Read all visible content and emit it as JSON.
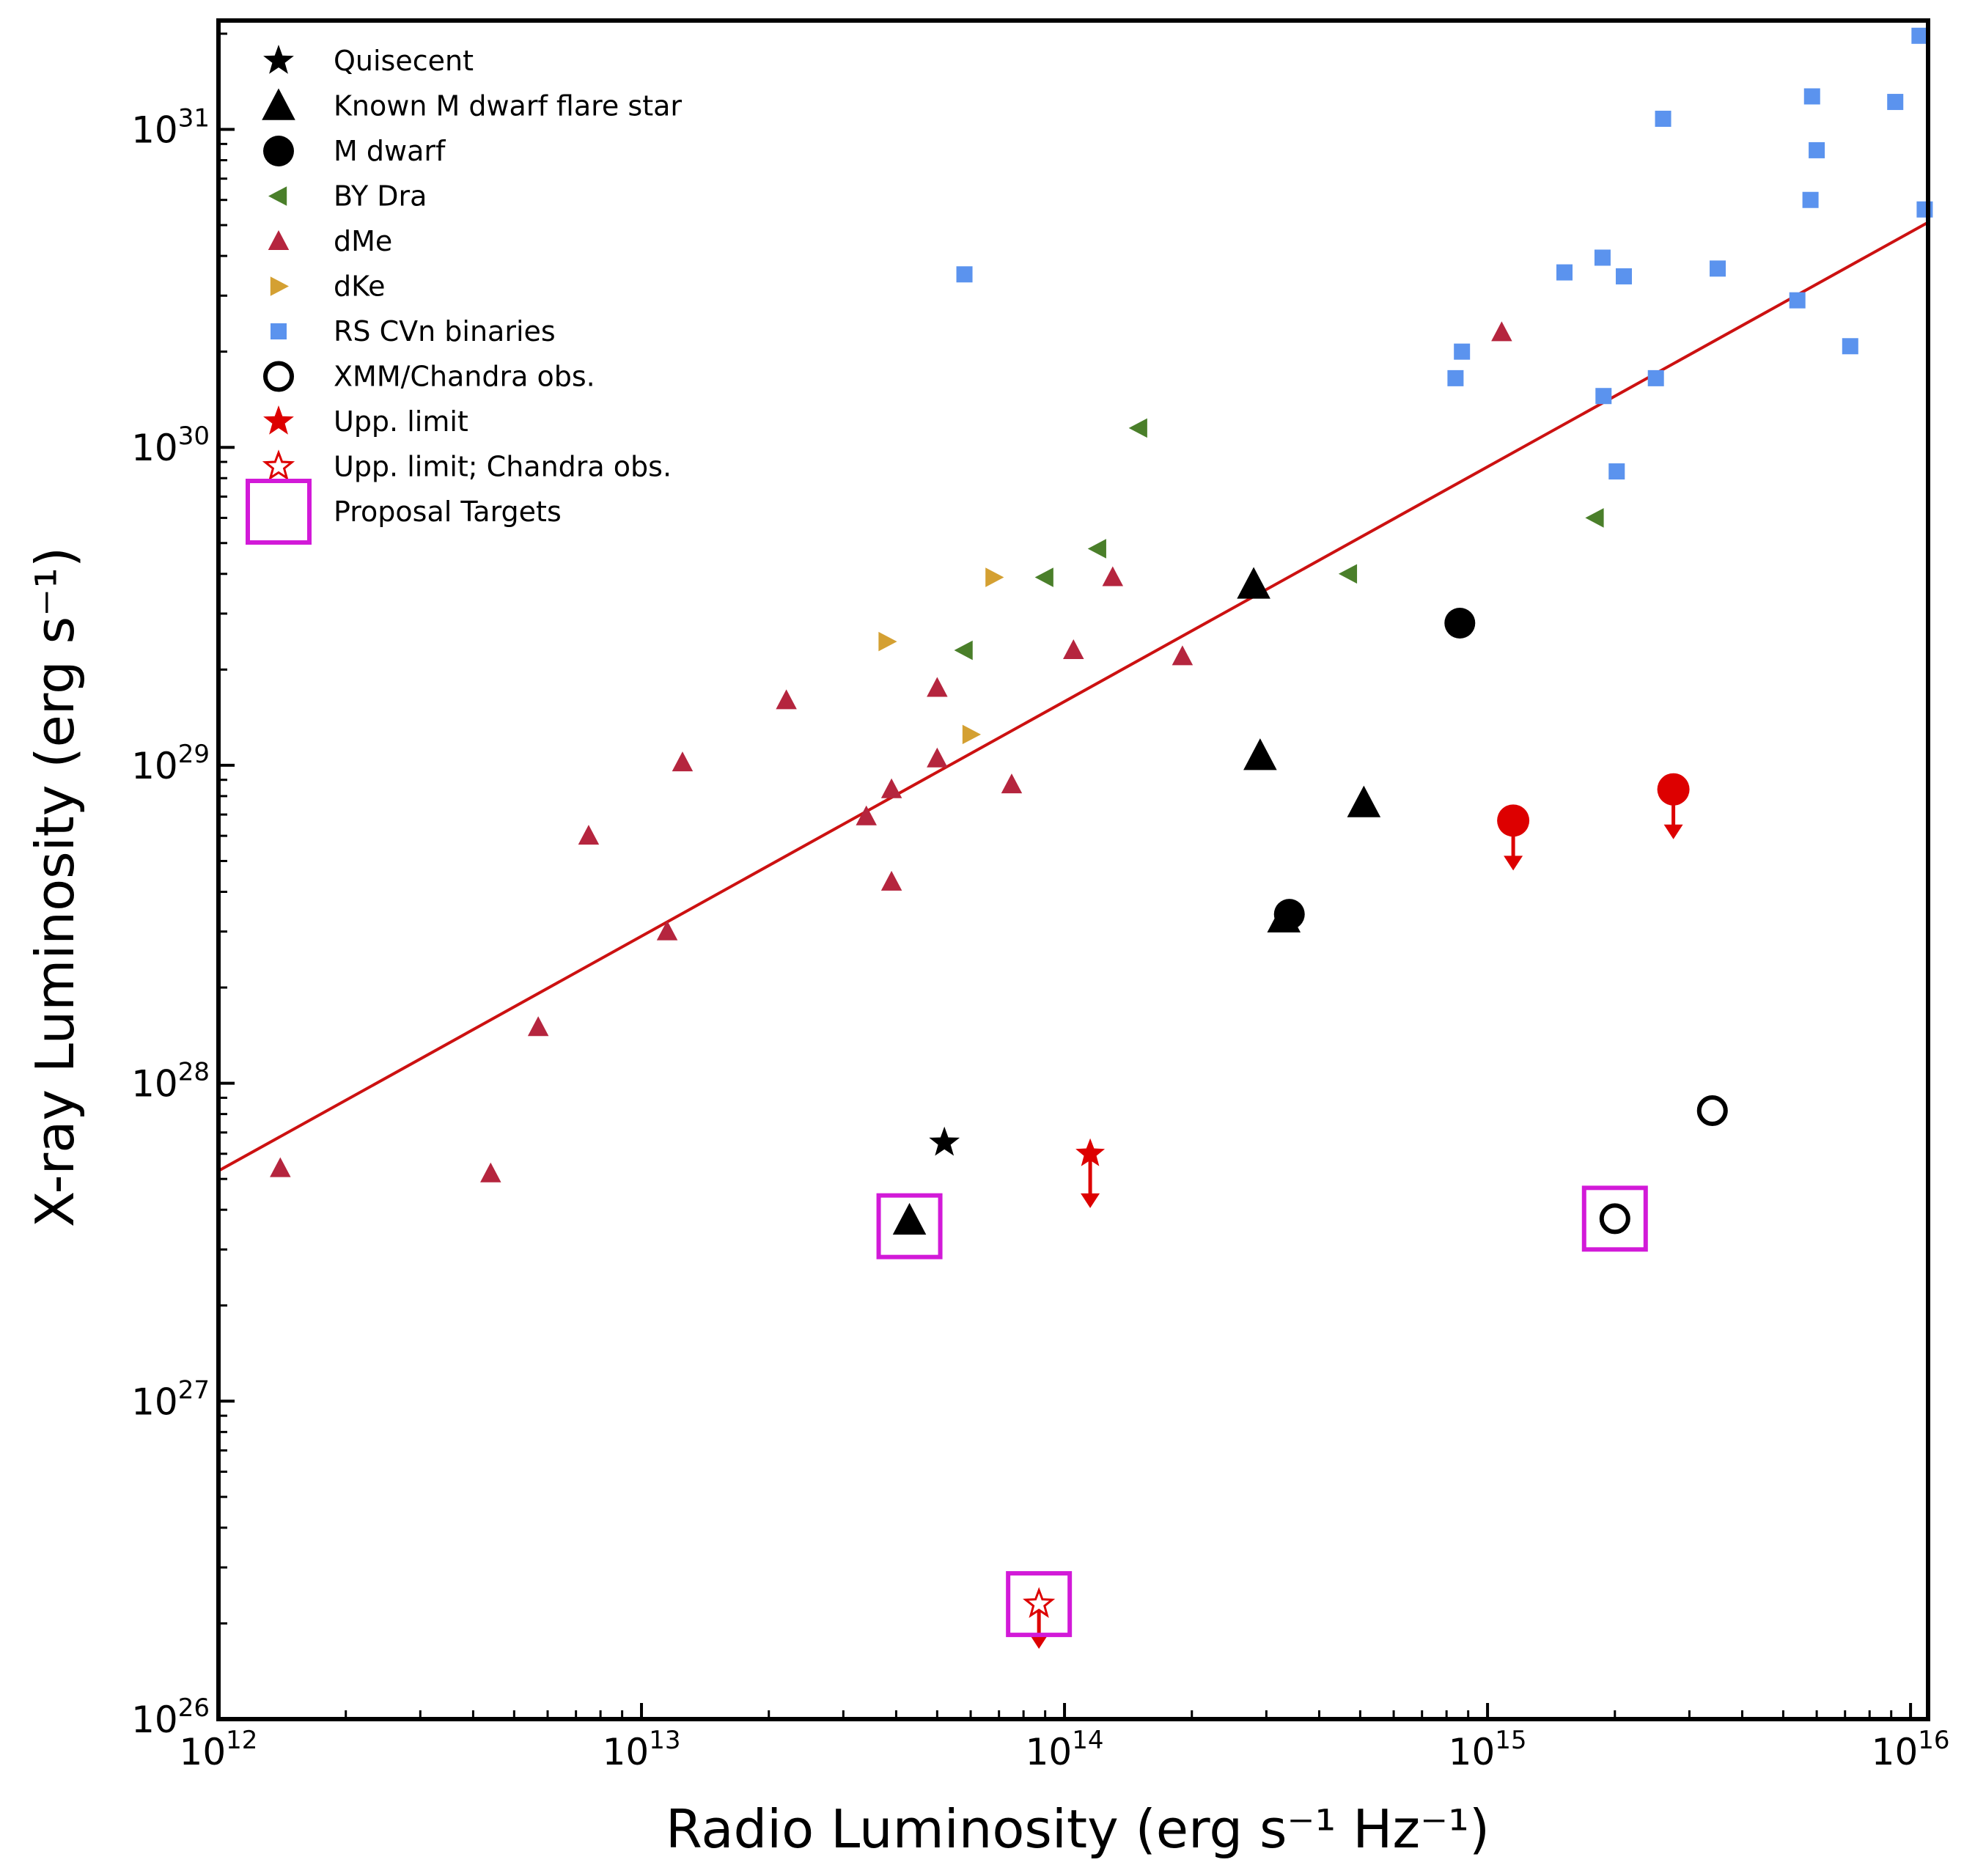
{
  "chart_data": {
    "type": "scatter",
    "xlabel": "Radio Luminosity (erg s⁻¹ Hz⁻¹)",
    "ylabel": "X-ray Luminosity (erg s⁻¹)",
    "xscale": "log",
    "yscale": "log",
    "xlim": [
      1000000000000.0,
      1.1e+16
    ],
    "ylim": [
      1e+26,
      2.2e+31
    ],
    "x_ticks": [
      {
        "value": 1000000000000.0,
        "label": "10",
        "exp": "12"
      },
      {
        "value": 10000000000000.0,
        "label": "10",
        "exp": "13"
      },
      {
        "value": 100000000000000.0,
        "label": "10",
        "exp": "14"
      },
      {
        "value": 1000000000000000.0,
        "label": "10",
        "exp": "15"
      },
      {
        "value": 1e+16,
        "label": "10",
        "exp": "16"
      }
    ],
    "y_ticks": [
      {
        "value": 1e+26,
        "label": "10",
        "exp": "26"
      },
      {
        "value": 1e+27,
        "label": "10",
        "exp": "27"
      },
      {
        "value": 1e+28,
        "label": "10",
        "exp": "28"
      },
      {
        "value": 1e+29,
        "label": "10",
        "exp": "29"
      },
      {
        "value": 1e+30,
        "label": "10",
        "exp": "30"
      },
      {
        "value": 1e+31,
        "label": "10",
        "exp": "31"
      }
    ],
    "legend_position": "top-left",
    "fit_line": {
      "x": [
        1000000000000.0,
        1.1e+16
      ],
      "y": [
        5.3e+27,
        5.1e+30
      ],
      "color": "#cc1111"
    },
    "series": [
      {
        "name": "Quisecent",
        "marker": "star",
        "color": "#000000",
        "points": [
          [
            52000000000000.0,
            6.5e+27
          ]
        ]
      },
      {
        "name": "Known M dwarf flare star",
        "marker": "triangle-up",
        "color": "#000000",
        "points": [
          [
            280000000000000.0,
            3.7e+29
          ],
          [
            290000000000000.0,
            1.07e+29
          ],
          [
            510000000000000.0,
            7.6e+28
          ],
          [
            330000000000000.0,
            3.3e+28
          ],
          [
            43000000000000.0,
            3.7e+27
          ]
        ]
      },
      {
        "name": "M dwarf",
        "marker": "circle",
        "color": "#000000",
        "points": [
          [
            860000000000000.0,
            2.8e+29
          ],
          [
            340000000000000.0,
            3.4e+28
          ]
        ]
      },
      {
        "name": "BY Dra",
        "marker": "triangle-left",
        "color": "#4a7f2a",
        "points": [
          [
            150000000000000.0,
            1.15e+30
          ],
          [
            120000000000000.0,
            4.8e+29
          ],
          [
            90000000000000.0,
            3.9e+29
          ],
          [
            58000000000000.0,
            2.3e+29
          ],
          [
            470000000000000.0,
            4e+29
          ],
          [
            1800000000000000.0,
            6e+29
          ]
        ]
      },
      {
        "name": "dMe",
        "marker": "triangle-up-small",
        "color": "#b5253e",
        "points": [
          [
            1400000000000.0,
            5.4e+27
          ],
          [
            4400000000000.0,
            5.2e+27
          ],
          [
            5700000000000.0,
            1.5e+28
          ],
          [
            7500000000000.0,
            6e+28
          ],
          [
            11500000000000.0,
            3e+28
          ],
          [
            12500000000000.0,
            1.02e+29
          ],
          [
            22000000000000.0,
            1.6e+29
          ],
          [
            34000000000000.0,
            6.9e+28
          ],
          [
            39000000000000.0,
            8.4e+28
          ],
          [
            39000000000000.0,
            4.3e+28
          ],
          [
            50000000000000.0,
            1.05e+29
          ],
          [
            50000000000000.0,
            1.75e+29
          ],
          [
            75000000000000.0,
            8.7e+28
          ],
          [
            105000000000000.0,
            2.3e+29
          ],
          [
            130000000000000.0,
            3.9e+29
          ],
          [
            190000000000000.0,
            2.2e+29
          ],
          [
            1080000000000000.0,
            2.3e+30
          ]
        ]
      },
      {
        "name": "dKe",
        "marker": "triangle-right",
        "color": "#d4a032",
        "points": [
          [
            38000000000000.0,
            2.45e+29
          ],
          [
            68000000000000.0,
            3.9e+29
          ],
          [
            60000000000000.0,
            1.25e+29
          ]
        ]
      },
      {
        "name": "RS CVn binaries",
        "marker": "square",
        "color": "#5b93ee",
        "points": [
          [
            58000000000000.0,
            3.5e+30
          ],
          [
            840000000000000.0,
            1.65e+30
          ],
          [
            870000000000000.0,
            2e+30
          ],
          [
            1520000000000000.0,
            3.55e+30
          ],
          [
            1870000000000000.0,
            3.95e+30
          ],
          [
            2100000000000000.0,
            3.45e+30
          ],
          [
            1880000000000000.0,
            1.45e+30
          ],
          [
            2020000000000000.0,
            8.4e+29
          ],
          [
            2500000000000000.0,
            1.65e+30
          ],
          [
            2600000000000000.0,
            1.08e+31
          ],
          [
            3500000000000000.0,
            3.65e+30
          ],
          [
            5400000000000000.0,
            2.9e+30
          ],
          [
            5800000000000000.0,
            6e+30
          ],
          [
            5850000000000000.0,
            1.27e+31
          ],
          [
            6000000000000000.0,
            8.6e+30
          ],
          [
            7200000000000000.0,
            2.08e+30
          ],
          [
            9200000000000000.0,
            1.22e+31
          ],
          [
            1.05e+16,
            1.97e+31
          ],
          [
            1.08e+16,
            5.6e+30
          ]
        ]
      },
      {
        "name": "XMM/Chandra obs.",
        "marker": "circle-open",
        "color": "#000000",
        "points": [
          [
            2000000000000000.0,
            3.75e+27
          ],
          [
            3400000000000000.0,
            8.2e+27
          ]
        ]
      },
      {
        "name": "Upp. limit",
        "marker": "upper-limit",
        "color": "#dd0000",
        "points": [
          [
            115000000000000.0,
            6e+27,
            "star"
          ],
          [
            1150000000000000.0,
            6.7e+28,
            "circle"
          ],
          [
            2750000000000000.0,
            8.4e+28,
            "circle"
          ]
        ]
      },
      {
        "name": "Upp. limit; Chandra obs.",
        "marker": "star-open-limit",
        "color": "#dd0000",
        "points": [
          [
            87000000000000.0,
            2.3e+26
          ]
        ]
      },
      {
        "name": "Proposal Targets",
        "marker": "box",
        "color": "#d21ad8",
        "points": [
          [
            43000000000000.0,
            3.55e+27
          ],
          [
            87000000000000.0,
            2.3e+26
          ],
          [
            2000000000000000.0,
            3.75e+27
          ]
        ]
      }
    ]
  }
}
